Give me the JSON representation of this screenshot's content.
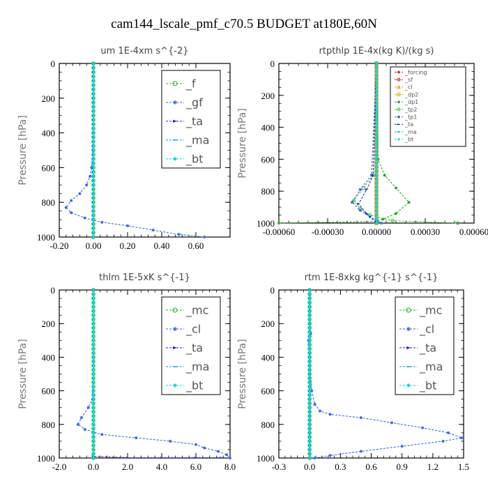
{
  "figure_title": "cam144_lscale_pmf_c70.5  BUDGET at180E,60N",
  "chart_data": [
    {
      "type": "line",
      "title": "um   1E-4xm s^{-2}",
      "ylabel": "Pressure [hPa]",
      "xlabel": "",
      "ylim": [
        1000,
        0
      ],
      "xlim": [
        -0.2,
        0.8
      ],
      "xticks": [
        -0.2,
        0.0,
        0.2,
        0.4,
        0.6
      ],
      "xtick_labels": [
        "-0.20",
        "0.00",
        "0.20",
        "0.40",
        "0.60"
      ],
      "yticks": [
        0,
        200,
        400,
        600,
        800,
        1000
      ],
      "ytick_labels": [
        "0",
        "200",
        "400",
        "600",
        "800",
        "1000"
      ],
      "legend": {
        "position": "top-right",
        "font": "large"
      },
      "series": [
        {
          "name": "_f",
          "color": "#22bb22",
          "marker": "circle",
          "x": [
            0,
            0
          ],
          "y": [
            0,
            1000
          ]
        },
        {
          "name": "_gf",
          "color": "#3366ee",
          "marker": "star",
          "x": [
            0.0,
            0.0,
            0.0,
            -0.01,
            -0.02,
            -0.04,
            -0.08,
            -0.13,
            -0.16,
            -0.13,
            -0.05,
            0.05,
            0.2,
            0.35,
            0.5,
            0.65
          ],
          "y": [
            0,
            200,
            400,
            600,
            650,
            700,
            750,
            790,
            830,
            860,
            890,
            915,
            935,
            960,
            985,
            1000
          ]
        },
        {
          "name": "_ta",
          "color": "#2222cc",
          "marker": "arrow",
          "x": [
            0,
            0
          ],
          "y": [
            0,
            1000
          ]
        },
        {
          "name": "_ma",
          "color": "#00aacc",
          "marker": "dash",
          "x": [
            0,
            0
          ],
          "y": [
            0,
            1000
          ]
        },
        {
          "name": "_bt",
          "color": "#00dddd",
          "marker": "diamond",
          "x": [
            0,
            0
          ],
          "y": [
            0,
            1000
          ]
        }
      ]
    },
    {
      "type": "line",
      "title": "rtpthlp   1E-4x(kg K)/(kg s)",
      "ylabel": "Pressure [hPa]",
      "xlabel": "",
      "ylim": [
        1000,
        0
      ],
      "xlim": [
        -0.0006,
        0.0006
      ],
      "xticks": [
        -0.0006,
        -0.0003,
        0.0,
        0.0003,
        0.0006
      ],
      "xtick_labels": [
        "-0.00060",
        "-0.00030",
        "0.00000",
        "0.00030",
        "0.00060"
      ],
      "yticks": [
        0,
        200,
        400,
        600,
        800,
        1000
      ],
      "ytick_labels": [
        "0",
        "200",
        "400",
        "600",
        "800",
        "1000"
      ],
      "legend": {
        "position": "top-right",
        "font": "small"
      },
      "series": [
        {
          "name": "_forcing",
          "color": "#cc2222",
          "marker": "star",
          "x": [
            0,
            0
          ],
          "y": [
            0,
            1000
          ]
        },
        {
          "name": "_sf",
          "color": "#dd2222",
          "marker": "circle",
          "x": [
            0,
            0
          ],
          "y": [
            0,
            1000
          ]
        },
        {
          "name": "_cl",
          "color": "#ee9900",
          "marker": "triangle",
          "x": [
            0,
            0
          ],
          "y": [
            0,
            1000
          ]
        },
        {
          "name": "_dp2",
          "color": "#ddaa22",
          "marker": "square",
          "x": [
            0,
            0
          ],
          "y": [
            0,
            1000
          ]
        },
        {
          "name": "_dp1",
          "color": "#22aa22",
          "marker": "star",
          "x": [
            0.0,
            1e-05,
            5e-05,
            0.00012,
            0.0002,
            0.00012,
            4e-05,
            0.0,
            -0.0006
          ],
          "y": [
            0,
            600,
            700,
            780,
            870,
            940,
            975,
            990,
            1000
          ]
        },
        {
          "name": "_tp2",
          "color": "#33cc33",
          "marker": "circle",
          "x": [
            0.0,
            -2e-05,
            -8e-05,
            -0.00014,
            -0.0001,
            -4e-05,
            0.0001,
            0.0005
          ],
          "y": [
            0,
            700,
            780,
            860,
            910,
            950,
            985,
            1000
          ]
        },
        {
          "name": "_tp1",
          "color": "#3366ee",
          "marker": "star",
          "x": [
            0.0,
            -3e-05,
            -0.0001,
            -0.00015,
            -0.0001,
            -4e-05,
            0.0,
            3e-05
          ],
          "y": [
            0,
            700,
            790,
            870,
            920,
            960,
            985,
            1000
          ]
        },
        {
          "name": "_ta",
          "color": "#2222cc",
          "marker": "arrow",
          "x": [
            0.0,
            -2e-05,
            -6e-05,
            -0.00011,
            -6e-05,
            0.0
          ],
          "y": [
            0,
            700,
            790,
            880,
            940,
            1000
          ]
        },
        {
          "name": "_ma",
          "color": "#00aacc",
          "marker": "dash",
          "x": [
            0,
            0
          ],
          "y": [
            0,
            1000
          ]
        },
        {
          "name": "_bt",
          "color": "#00dddd",
          "marker": "diamond",
          "x": [
            0,
            0
          ],
          "y": [
            0,
            1000
          ]
        }
      ]
    },
    {
      "type": "line",
      "title": "thlm   1E-5xK s^{-1}",
      "ylabel": "Pressure [hPa]",
      "xlabel": "",
      "ylim": [
        1000,
        0
      ],
      "xlim": [
        -2.0,
        8.0
      ],
      "xticks": [
        -2.0,
        0.0,
        2.0,
        4.0,
        6.0,
        8.0
      ],
      "xtick_labels": [
        "-2.0",
        "0.0",
        "2.0",
        "4.0",
        "6.0",
        "8.0"
      ],
      "yticks": [
        0,
        200,
        400,
        600,
        800,
        1000
      ],
      "ytick_labels": [
        "0",
        "200",
        "400",
        "600",
        "800",
        "1000"
      ],
      "legend": {
        "position": "top-right",
        "font": "large"
      },
      "series": [
        {
          "name": "_mc",
          "color": "#22bb22",
          "marker": "circle",
          "x": [
            0,
            0
          ],
          "y": [
            0,
            1000
          ]
        },
        {
          "name": "_cl",
          "color": "#3366ee",
          "marker": "star",
          "x": [
            0.0,
            0.0,
            -0.05,
            -0.3,
            -0.7,
            -0.9,
            -0.5,
            0.5,
            2.5,
            4.5,
            6.0,
            6.5,
            7.3,
            7.8,
            8.0
          ],
          "y": [
            0,
            400,
            650,
            700,
            760,
            800,
            830,
            860,
            880,
            900,
            920,
            940,
            960,
            980,
            1000
          ]
        },
        {
          "name": "_ta",
          "color": "#2222cc",
          "marker": "arrow",
          "x": [
            0.0,
            0.0,
            2.0,
            4.0,
            6.0,
            7.5
          ],
          "y": [
            0,
            990,
            998,
            998,
            998,
            998
          ]
        },
        {
          "name": "_ma",
          "color": "#00aacc",
          "marker": "dash",
          "x": [
            0,
            0
          ],
          "y": [
            0,
            1000
          ]
        },
        {
          "name": "_bt",
          "color": "#00dddd",
          "marker": "diamond",
          "x": [
            0,
            0
          ],
          "y": [
            0,
            1000
          ]
        }
      ]
    },
    {
      "type": "line",
      "title": "rtm   1E-8xkg kg^{-1} s^{-1}",
      "ylabel": "Pressure [hPa]",
      "xlabel": "",
      "ylim": [
        1000,
        0
      ],
      "xlim": [
        -0.3,
        1.5
      ],
      "xticks": [
        -0.3,
        0.0,
        0.3,
        0.6,
        0.9,
        1.2,
        1.5
      ],
      "xtick_labels": [
        "-0.3",
        "0.0",
        "0.3",
        "0.6",
        "0.9",
        "1.2",
        "1.5"
      ],
      "yticks": [
        0,
        200,
        400,
        600,
        800,
        1000
      ],
      "ytick_labels": [
        "0",
        "200",
        "400",
        "600",
        "800",
        "1000"
      ],
      "legend": {
        "position": "top-right",
        "font": "large"
      },
      "series": [
        {
          "name": "_mc",
          "color": "#22bb22",
          "marker": "circle",
          "x": [
            0,
            0
          ],
          "y": [
            0,
            1000
          ]
        },
        {
          "name": "_cl",
          "color": "#3366ee",
          "marker": "star",
          "x": [
            0.0,
            0.0,
            0.01,
            -0.01,
            0.0,
            0.02,
            0.05,
            0.1,
            0.2,
            0.5,
            0.8,
            1.1,
            1.35,
            1.48,
            1.3,
            0.9,
            0.5,
            0.2,
            0.05
          ],
          "y": [
            0,
            200,
            260,
            300,
            400,
            600,
            680,
            720,
            740,
            760,
            790,
            820,
            850,
            880,
            900,
            930,
            960,
            985,
            1000
          ]
        },
        {
          "name": "_ta",
          "color": "#2222cc",
          "marker": "arrow",
          "x": [
            0,
            0
          ],
          "y": [
            0,
            1000
          ]
        },
        {
          "name": "_ma",
          "color": "#00aacc",
          "marker": "dash",
          "x": [
            0,
            0
          ],
          "y": [
            0,
            1000
          ]
        },
        {
          "name": "_bt",
          "color": "#00dddd",
          "marker": "diamond",
          "x": [
            0,
            0
          ],
          "y": [
            0,
            1000
          ]
        }
      ]
    }
  ]
}
